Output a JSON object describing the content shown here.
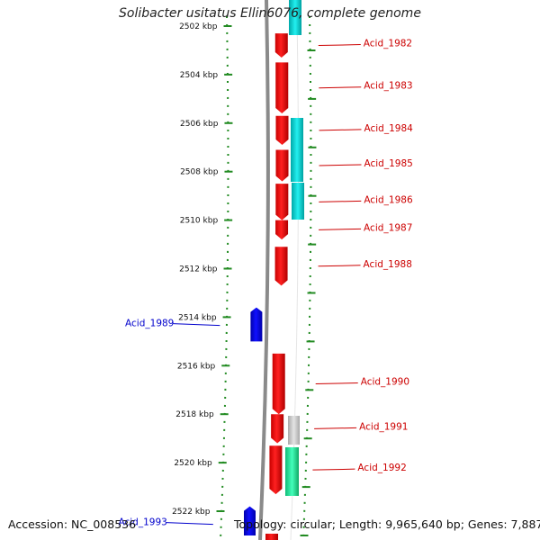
{
  "title": "Solibacter usitatus Ellin6076, complete genome",
  "footer": {
    "accession": "Accession: NC_008536",
    "topology": "Topology: circular; Length: 9,965,640 bp; Genes: 7,887"
  },
  "colors": {
    "forward_cds": "#ff0000",
    "reverse_cds": "#0000ee",
    "forward_label": "#cc0000",
    "reverse_label": "#0000cc",
    "tick": "#228b22",
    "cyan_feature": "#00cccc",
    "grey_feature": "#c8c8c8",
    "green_feature": "#22ee99",
    "backbone": "#888888"
  },
  "axis": {
    "unit": "kbp",
    "ticks": [
      {
        "label": "2502 kbp"
      },
      {
        "label": "2504 kbp"
      },
      {
        "label": "2506 kbp"
      },
      {
        "label": "2508 kbp"
      },
      {
        "label": "2510 kbp"
      },
      {
        "label": "2512 kbp"
      },
      {
        "label": "2514 kbp"
      },
      {
        "label": "2516 kbp"
      },
      {
        "label": "2518 kbp"
      },
      {
        "label": "2520 kbp"
      },
      {
        "label": "2522 kbp"
      }
    ]
  },
  "genes": [
    {
      "name": "Acid_1982",
      "strand": "+",
      "start_kbp": 2502.3,
      "end_kbp": 2503.3
    },
    {
      "name": "Acid_1983",
      "strand": "+",
      "start_kbp": 2503.5,
      "end_kbp": 2505.6
    },
    {
      "name": "Acid_1984",
      "strand": "+",
      "start_kbp": 2505.7,
      "end_kbp": 2506.9
    },
    {
      "name": "Acid_1985",
      "strand": "+",
      "start_kbp": 2507.1,
      "end_kbp": 2508.4
    },
    {
      "name": "Acid_1986",
      "strand": "+",
      "start_kbp": 2508.5,
      "end_kbp": 2510.0
    },
    {
      "name": "Acid_1987",
      "strand": "+",
      "start_kbp": 2510.0,
      "end_kbp": 2510.8
    },
    {
      "name": "Acid_1988",
      "strand": "+",
      "start_kbp": 2511.1,
      "end_kbp": 2512.7
    },
    {
      "name": "Acid_1989",
      "strand": "-",
      "start_kbp": 2513.6,
      "end_kbp": 2515.0
    },
    {
      "name": "Acid_1990",
      "strand": "+",
      "start_kbp": 2515.5,
      "end_kbp": 2518.0
    },
    {
      "name": "Acid_1991",
      "strand": "+",
      "start_kbp": 2518.0,
      "end_kbp": 2519.2
    },
    {
      "name": "Acid_1992",
      "strand": "+",
      "start_kbp": 2519.3,
      "end_kbp": 2521.3
    },
    {
      "name": "Acid_1993",
      "strand": "-",
      "start_kbp": 2521.8,
      "end_kbp": 2523.0
    }
  ]
}
